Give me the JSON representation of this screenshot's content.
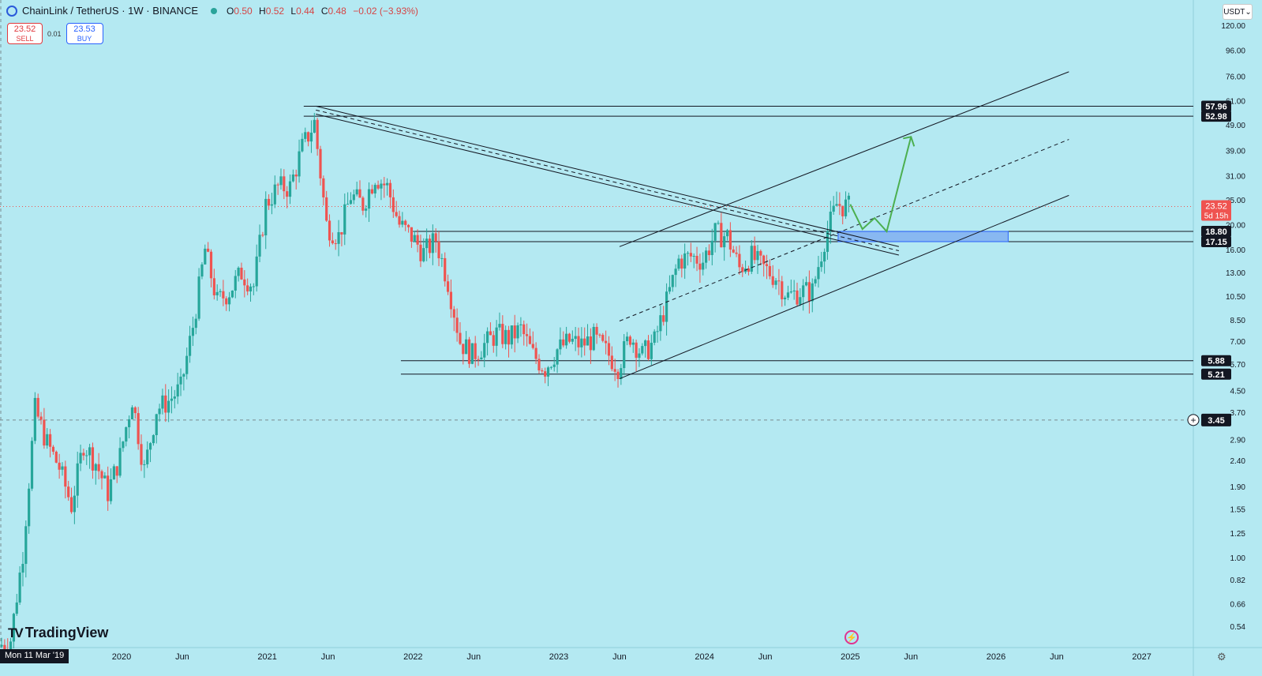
{
  "header": {
    "symbol_line": "ChainLink / TetherUS · 1W · BINANCE",
    "ohlc": {
      "o_label": "O",
      "o": "0.50",
      "h_label": "H",
      "h": "0.52",
      "l_label": "L",
      "l": "0.44",
      "c_label": "C",
      "c": "0.48",
      "change": "−0.02 (−3.93%)"
    }
  },
  "trade": {
    "sell_price": "23.52",
    "sell_label": "SELL",
    "spread": "0.01",
    "buy_price": "23.53",
    "buy_label": "BUY"
  },
  "currency_button": "USDT",
  "watermark": "TradingView",
  "watermark_logo": "TV",
  "crosshair_date": "Mon 11 Mar '19",
  "colors": {
    "up": "#26a69a",
    "down": "#ef5350",
    "projection": "#4caf50",
    "zone": "#7aa7f0",
    "background": "#b4e9f2"
  },
  "chart_data": {
    "type": "candlestick",
    "title": "",
    "y_scale": "log",
    "ylim": [
      0.5,
      125
    ],
    "x_range": [
      "2019-03-11",
      "2027-06-01"
    ],
    "x_tick_labels": [
      "2020",
      "Jun",
      "2021",
      "Jun",
      "2022",
      "Jun",
      "2023",
      "Jun",
      "2024",
      "Jun",
      "2025",
      "Jun",
      "2026",
      "Jun",
      "2027"
    ],
    "y_tick_labels": [
      "120.00",
      "96.00",
      "76.00",
      "61.00",
      "49.00",
      "39.00",
      "31.00",
      "25.00",
      "20.00",
      "16.00",
      "13.00",
      "10.50",
      "8.50",
      "7.00",
      "5.70",
      "4.50",
      "3.70",
      "2.90",
      "2.40",
      "1.90",
      "1.55",
      "1.25",
      "1.00",
      "0.82",
      "0.66",
      "0.54"
    ],
    "horizontal_levels": [
      {
        "value": 57.96,
        "label": "57.96"
      },
      {
        "value": 52.98,
        "label": "52.98"
      },
      {
        "value": 18.8,
        "label": "18.80"
      },
      {
        "value": 17.15,
        "label": "17.15"
      },
      {
        "value": 5.88,
        "label": "5.88"
      },
      {
        "value": 5.21,
        "label": "5.21"
      }
    ],
    "last_price": {
      "value": 23.52,
      "label": "23.52",
      "countdown": "5d 15h"
    },
    "crosshair_price": {
      "value": 3.45,
      "label": "3.45"
    },
    "series": [
      {
        "name": "LINKUSDT",
        "points": [
          {
            "date": "2019-03",
            "close": 0.45
          },
          {
            "date": "2019-04",
            "close": 0.48
          },
          {
            "date": "2019-05",
            "close": 1.05
          },
          {
            "date": "2019-06",
            "close": 3.8
          },
          {
            "date": "2019-07",
            "close": 2.8
          },
          {
            "date": "2019-08",
            "close": 2.25
          },
          {
            "date": "2019-09",
            "close": 1.6
          },
          {
            "date": "2019-10",
            "close": 2.8
          },
          {
            "date": "2019-11",
            "close": 2.35
          },
          {
            "date": "2019-12",
            "close": 1.8
          },
          {
            "date": "2020-01",
            "close": 2.5
          },
          {
            "date": "2020-02",
            "close": 4.2
          },
          {
            "date": "2020-03",
            "close": 2.2
          },
          {
            "date": "2020-04",
            "close": 3.8
          },
          {
            "date": "2020-05",
            "close": 4.1
          },
          {
            "date": "2020-06",
            "close": 4.6
          },
          {
            "date": "2020-07",
            "close": 8.0
          },
          {
            "date": "2020-08",
            "close": 16.0
          },
          {
            "date": "2020-09",
            "close": 10.0
          },
          {
            "date": "2020-10",
            "close": 11.0
          },
          {
            "date": "2020-11",
            "close": 13.0
          },
          {
            "date": "2020-12",
            "close": 11.5
          },
          {
            "date": "2021-01",
            "close": 24.0
          },
          {
            "date": "2021-02",
            "close": 28.0
          },
          {
            "date": "2021-03",
            "close": 28.0
          },
          {
            "date": "2021-04",
            "close": 40.0
          },
          {
            "date": "2021-05",
            "close": 50.0
          },
          {
            "date": "2021-06",
            "close": 20.0
          },
          {
            "date": "2021-07",
            "close": 18.0
          },
          {
            "date": "2021-08",
            "close": 26.0
          },
          {
            "date": "2021-09",
            "close": 24.0
          },
          {
            "date": "2021-10",
            "close": 31.0
          },
          {
            "date": "2021-11",
            "close": 28.0
          },
          {
            "date": "2021-12",
            "close": 20.0
          },
          {
            "date": "2022-01",
            "close": 18.0
          },
          {
            "date": "2022-02",
            "close": 15.5
          },
          {
            "date": "2022-03",
            "close": 17.5
          },
          {
            "date": "2022-04",
            "close": 12.0
          },
          {
            "date": "2022-05",
            "close": 7.0
          },
          {
            "date": "2022-06",
            "close": 6.2
          },
          {
            "date": "2022-07",
            "close": 6.8
          },
          {
            "date": "2022-08",
            "close": 7.5
          },
          {
            "date": "2022-09",
            "close": 7.2
          },
          {
            "date": "2022-10",
            "close": 7.8
          },
          {
            "date": "2022-11",
            "close": 6.2
          },
          {
            "date": "2022-12",
            "close": 5.5
          },
          {
            "date": "2023-01",
            "close": 6.5
          },
          {
            "date": "2023-02",
            "close": 7.0
          },
          {
            "date": "2023-03",
            "close": 6.8
          },
          {
            "date": "2023-04",
            "close": 7.2
          },
          {
            "date": "2023-05",
            "close": 6.4
          },
          {
            "date": "2023-06",
            "close": 5.6
          },
          {
            "date": "2023-07",
            "close": 7.4
          },
          {
            "date": "2023-08",
            "close": 6.2
          },
          {
            "date": "2023-09",
            "close": 7.0
          },
          {
            "date": "2023-10",
            "close": 10.0
          },
          {
            "date": "2023-11",
            "close": 14.5
          },
          {
            "date": "2023-12",
            "close": 15.0
          },
          {
            "date": "2024-01",
            "close": 14.5
          },
          {
            "date": "2024-02",
            "close": 18.5
          },
          {
            "date": "2024-03",
            "close": 18.0
          },
          {
            "date": "2024-04",
            "close": 13.5
          },
          {
            "date": "2024-05",
            "close": 15.0
          },
          {
            "date": "2024-06",
            "close": 13.5
          },
          {
            "date": "2024-07",
            "close": 12.5
          },
          {
            "date": "2024-08",
            "close": 10.5
          },
          {
            "date": "2024-09",
            "close": 11.0
          },
          {
            "date": "2024-10",
            "close": 11.0
          },
          {
            "date": "2024-11",
            "close": 17.5
          },
          {
            "date": "2024-12",
            "close": 24.0
          },
          {
            "date": "2025-01",
            "close": 23.52
          }
        ]
      }
    ],
    "trendlines": [
      {
        "name": "descending-upper",
        "from": {
          "date": "2021-05",
          "value": 58
        },
        "to": {
          "date": "2025-05",
          "value": 16.4
        }
      },
      {
        "name": "descending-lower",
        "from": {
          "date": "2021-05",
          "value": 54
        },
        "to": {
          "date": "2025-05",
          "value": 15.2
        }
      },
      {
        "name": "descending-dashed",
        "from": {
          "date": "2021-05",
          "value": 56
        },
        "to": {
          "date": "2025-05",
          "value": 15.8
        }
      },
      {
        "name": "channel-upper",
        "from": {
          "date": "2023-06",
          "value": 16.4
        },
        "to": {
          "date": "2026-07",
          "value": 79
        }
      },
      {
        "name": "channel-mid-dashed",
        "from": {
          "date": "2023-06",
          "value": 8.4
        },
        "to": {
          "date": "2026-07",
          "value": 43
        }
      },
      {
        "name": "channel-lower",
        "from": {
          "date": "2023-06",
          "value": 5.0
        },
        "to": {
          "date": "2026-07",
          "value": 26
        }
      }
    ],
    "zone": {
      "from": "2024-12",
      "to": "2026-02",
      "low": 17.15,
      "high": 18.8
    },
    "projection": [
      {
        "date": "2025-01",
        "value": 24.0
      },
      {
        "date": "2025-02",
        "value": 19.2
      },
      {
        "date": "2025-03",
        "value": 21.2
      },
      {
        "date": "2025-04",
        "value": 18.8
      },
      {
        "date": "2025-06",
        "value": 44.0
      }
    ]
  }
}
